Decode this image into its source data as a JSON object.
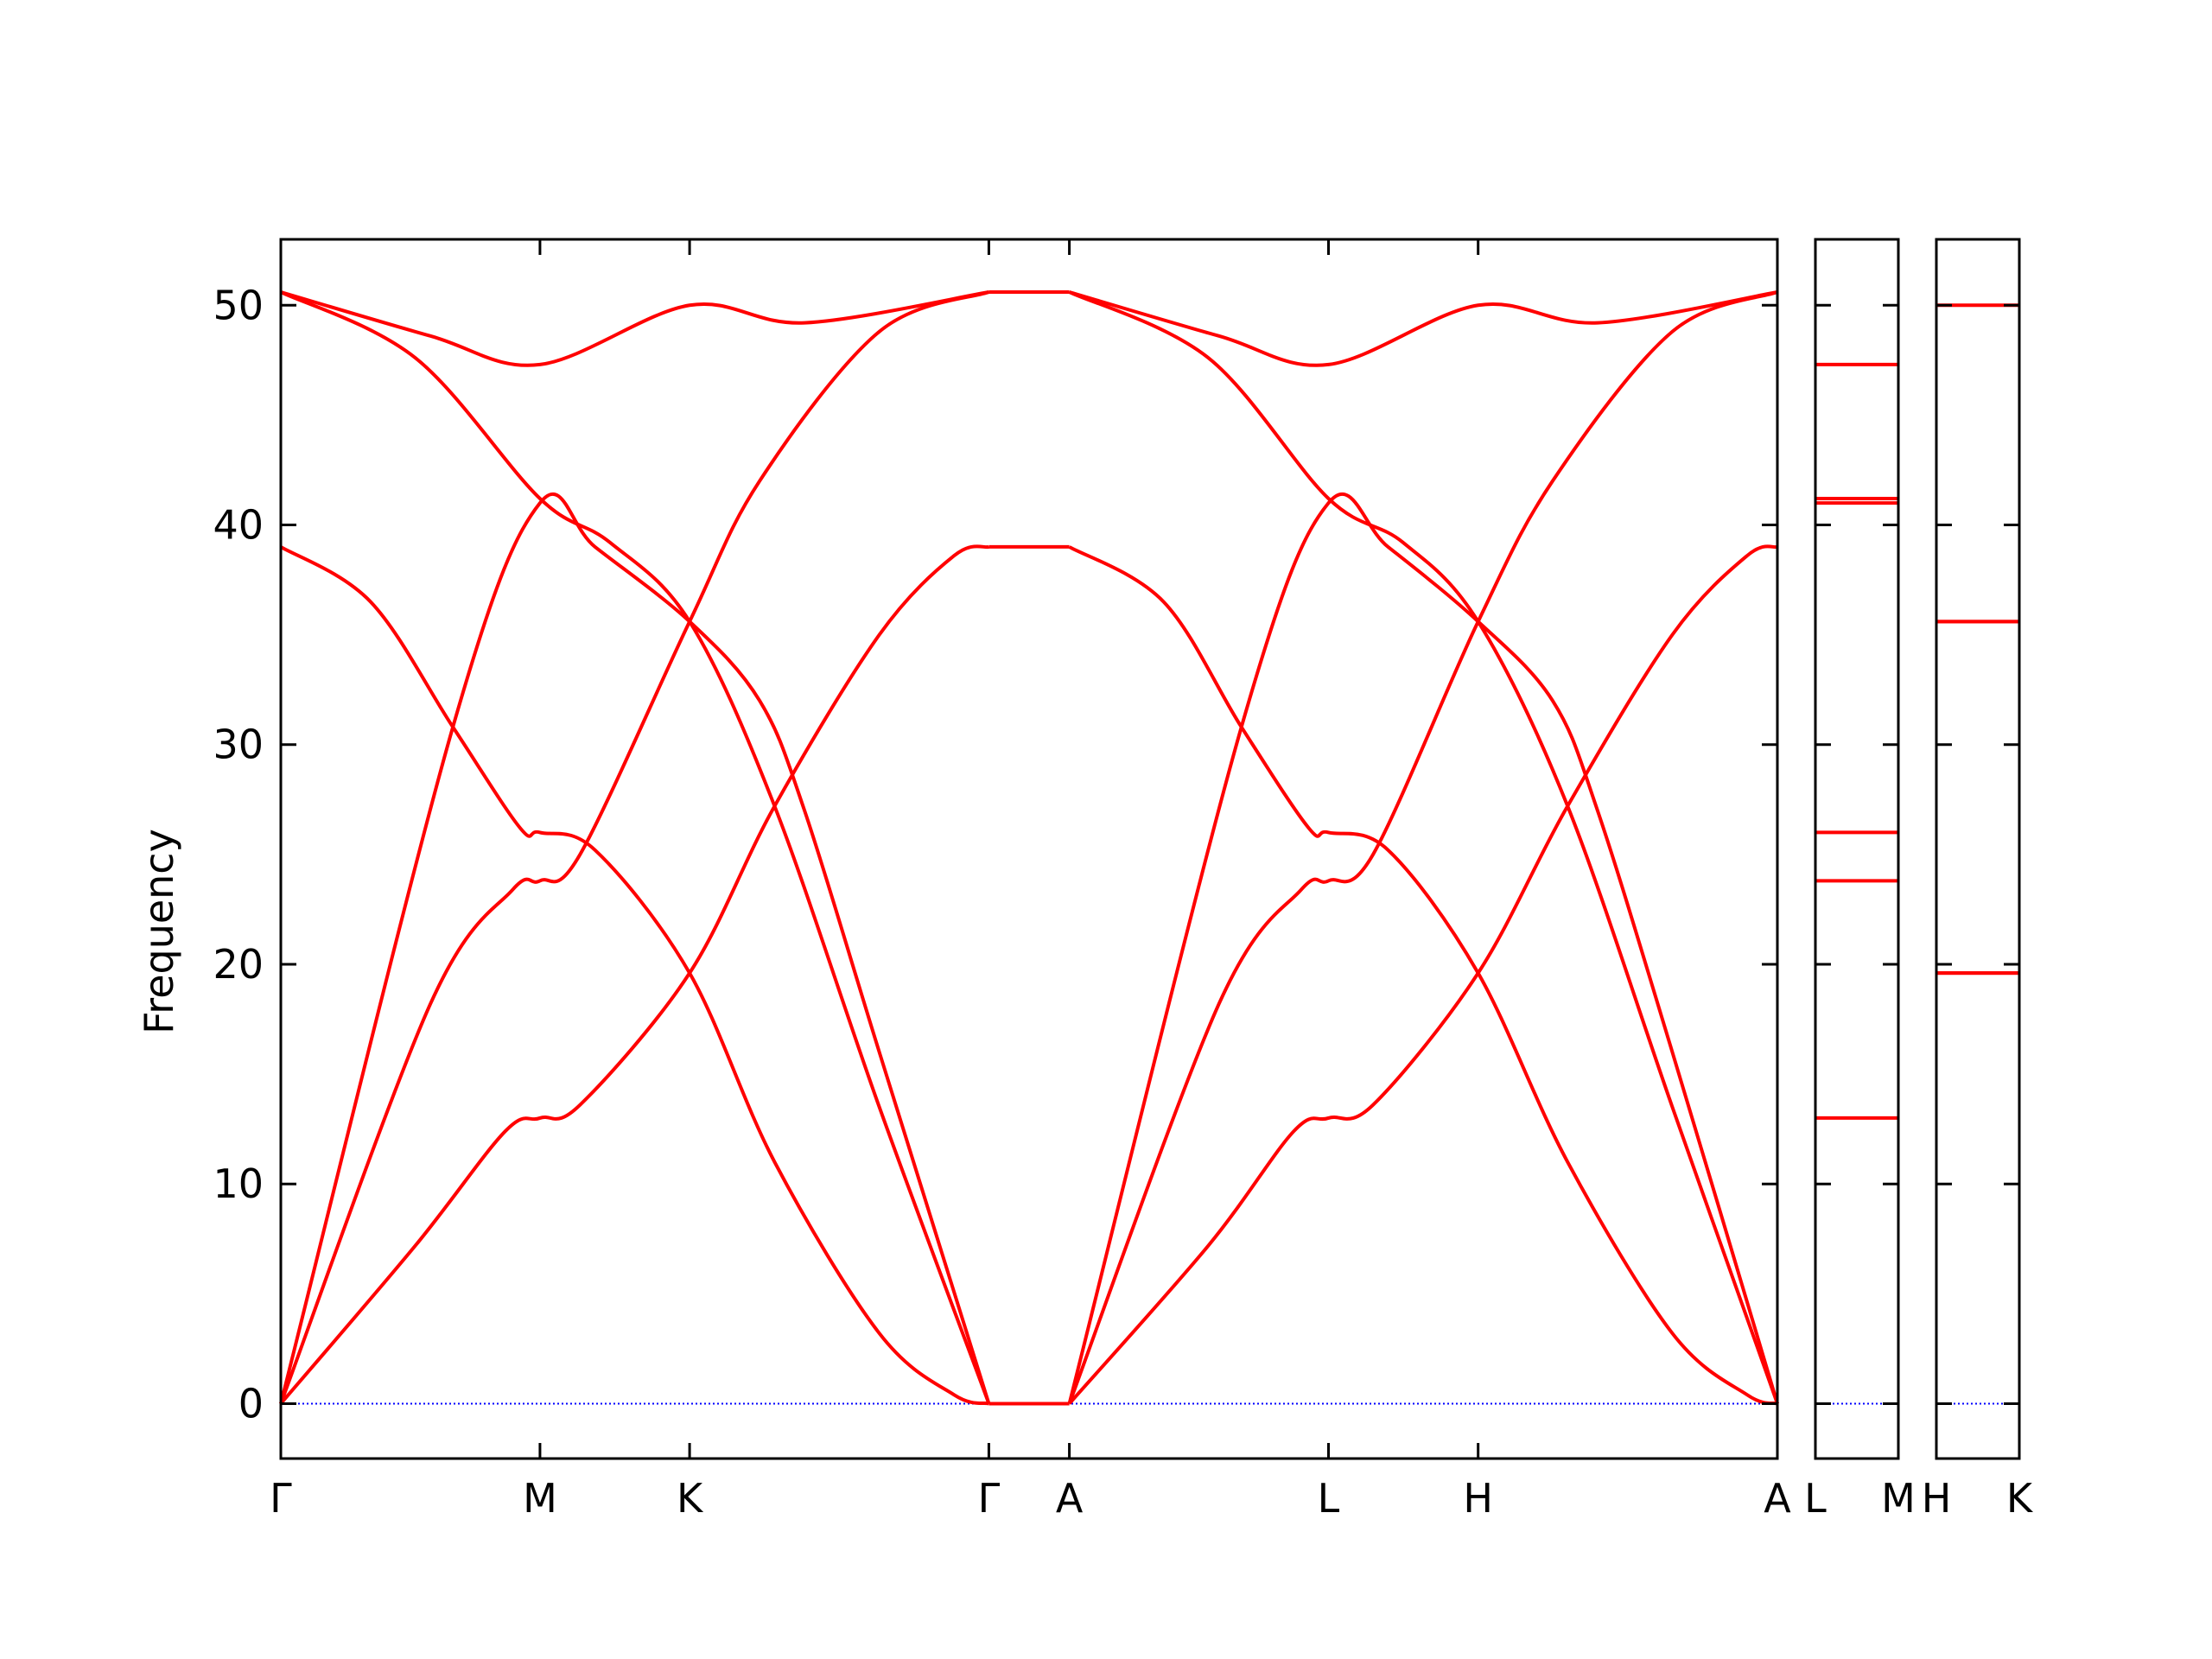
{
  "chart_data": {
    "type": "line",
    "ylabel": "Frequency",
    "ylim": [
      -2.5,
      53
    ],
    "yticks": [
      0,
      10,
      20,
      30,
      40,
      50
    ],
    "ytick_labels": [
      "0",
      "10",
      "20",
      "30",
      "40",
      "50"
    ],
    "colors": {
      "bands": "#ff0000",
      "zero_line": "#0000ff",
      "axes": "#000000"
    },
    "panels": [
      {
        "labels": [
          "Γ",
          "M",
          "K",
          "Γ",
          "A",
          "L",
          "H",
          "A"
        ],
        "positions": [
          0,
          1.732,
          2.732,
          4.732,
          5.27,
          7.002,
          8.002,
          10.002
        ],
        "series": [
          {
            "points": [
              [
                0,
                0
              ],
              [
                0.9,
                7.2
              ],
              [
                1.5,
                12.4
              ],
              [
                1.732,
                13.0
              ],
              [
                2.0,
                13.6
              ],
              [
                2.732,
                19.6
              ],
              [
                3.3,
                27.2
              ],
              [
                4.0,
                35.0
              ],
              [
                4.5,
                38.6
              ],
              [
                4.732,
                39.0
              ]
            ]
          },
          {
            "points": [
              [
                0,
                0
              ],
              [
                1.0,
                18.2
              ],
              [
                1.55,
                23.4
              ],
              [
                1.732,
                23.8
              ],
              [
                2.0,
                25.0
              ],
              [
                2.732,
                35.6
              ],
              [
                3.2,
                42.0
              ],
              [
                4.0,
                48.8
              ],
              [
                4.732,
                50.6
              ]
            ]
          },
          {
            "points": [
              [
                0,
                0
              ],
              [
                1.15,
                30.8
              ],
              [
                1.732,
                41.0
              ],
              [
                2.1,
                39.0
              ],
              [
                2.732,
                35.6
              ],
              [
                3.2,
                32.0
              ],
              [
                3.5,
                27.0
              ],
              [
                4.0,
                16.0
              ],
              [
                4.732,
                0
              ]
            ]
          },
          {
            "points": [
              [
                0,
                39.0
              ],
              [
                0.6,
                36.5
              ],
              [
                1.15,
                30.8
              ],
              [
                1.6,
                26.2
              ],
              [
                1.732,
                26.0
              ],
              [
                2.1,
                25.2
              ],
              [
                2.732,
                19.6
              ],
              [
                3.3,
                11.0
              ],
              [
                4.0,
                3.2
              ],
              [
                4.5,
                0.4
              ],
              [
                4.732,
                0
              ]
            ]
          },
          {
            "points": [
              [
                0,
                50.6
              ],
              [
                0.9,
                47.6
              ],
              [
                1.732,
                41.2
              ],
              [
                2.2,
                39.2
              ],
              [
                2.732,
                35.6
              ],
              [
                3.3,
                27.2
              ],
              [
                4.0,
                13.5
              ],
              [
                4.732,
                0
              ]
            ]
          },
          {
            "points": [
              [
                0,
                50.6
              ],
              [
                1.0,
                48.6
              ],
              [
                1.732,
                47.3
              ],
              [
                2.732,
                50.0
              ],
              [
                3.5,
                49.2
              ],
              [
                4.732,
                50.6
              ]
            ]
          },
          {
            "points": [
              [
                4.732,
                0
              ],
              [
                5.27,
                0
              ]
            ]
          },
          {
            "points": [
              [
                4.732,
                50.6
              ],
              [
                5.27,
                50.6
              ]
            ]
          },
          {
            "points": [
              [
                4.732,
                39.0
              ],
              [
                5.27,
                39.0
              ]
            ]
          },
          {
            "points": [
              [
                5.27,
                0
              ],
              [
                6.2,
                7.2
              ],
              [
                6.77,
                12.4
              ],
              [
                7.002,
                13.0
              ],
              [
                7.3,
                13.6
              ],
              [
                8.002,
                19.6
              ],
              [
                8.6,
                27.2
              ],
              [
                9.3,
                35.0
              ],
              [
                9.8,
                38.6
              ],
              [
                10.002,
                39.0
              ]
            ]
          },
          {
            "points": [
              [
                5.27,
                0
              ],
              [
                6.27,
                18.2
              ],
              [
                6.82,
                23.4
              ],
              [
                7.002,
                23.8
              ],
              [
                7.3,
                25.0
              ],
              [
                8.002,
                35.6
              ],
              [
                8.5,
                42.0
              ],
              [
                9.3,
                48.8
              ],
              [
                10.002,
                50.6
              ]
            ]
          },
          {
            "points": [
              [
                5.27,
                0
              ],
              [
                6.42,
                30.8
              ],
              [
                7.002,
                41.0
              ],
              [
                7.4,
                39.0
              ],
              [
                8.002,
                35.6
              ],
              [
                8.5,
                32.0
              ],
              [
                8.8,
                27.0
              ],
              [
                9.3,
                16.0
              ],
              [
                10.002,
                0
              ]
            ]
          },
          {
            "points": [
              [
                5.27,
                39.0
              ],
              [
                5.9,
                36.5
              ],
              [
                6.42,
                30.8
              ],
              [
                6.87,
                26.2
              ],
              [
                7.002,
                26.0
              ],
              [
                7.4,
                25.2
              ],
              [
                8.002,
                19.6
              ],
              [
                8.6,
                11.0
              ],
              [
                9.3,
                3.2
              ],
              [
                9.8,
                0.4
              ],
              [
                10.002,
                0
              ]
            ]
          },
          {
            "points": [
              [
                5.27,
                50.6
              ],
              [
                6.2,
                47.6
              ],
              [
                7.002,
                41.2
              ],
              [
                7.5,
                39.2
              ],
              [
                8.002,
                35.6
              ],
              [
                8.6,
                27.2
              ],
              [
                9.3,
                13.5
              ],
              [
                10.002,
                0
              ]
            ]
          },
          {
            "points": [
              [
                5.27,
                50.6
              ],
              [
                6.27,
                48.6
              ],
              [
                7.002,
                47.3
              ],
              [
                8.002,
                50.0
              ],
              [
                8.8,
                49.2
              ],
              [
                10.002,
                50.6
              ]
            ]
          }
        ]
      },
      {
        "labels": [
          "L",
          "M"
        ],
        "positions": [
          0,
          1
        ],
        "levels": [
          0,
          13.0,
          23.8,
          26.0,
          41.0,
          41.2,
          47.3
        ]
      },
      {
        "labels": [
          "H",
          "K"
        ],
        "positions": [
          0,
          1
        ],
        "levels": [
          0,
          19.6,
          19.6,
          35.6,
          35.6,
          50.0
        ]
      }
    ]
  }
}
